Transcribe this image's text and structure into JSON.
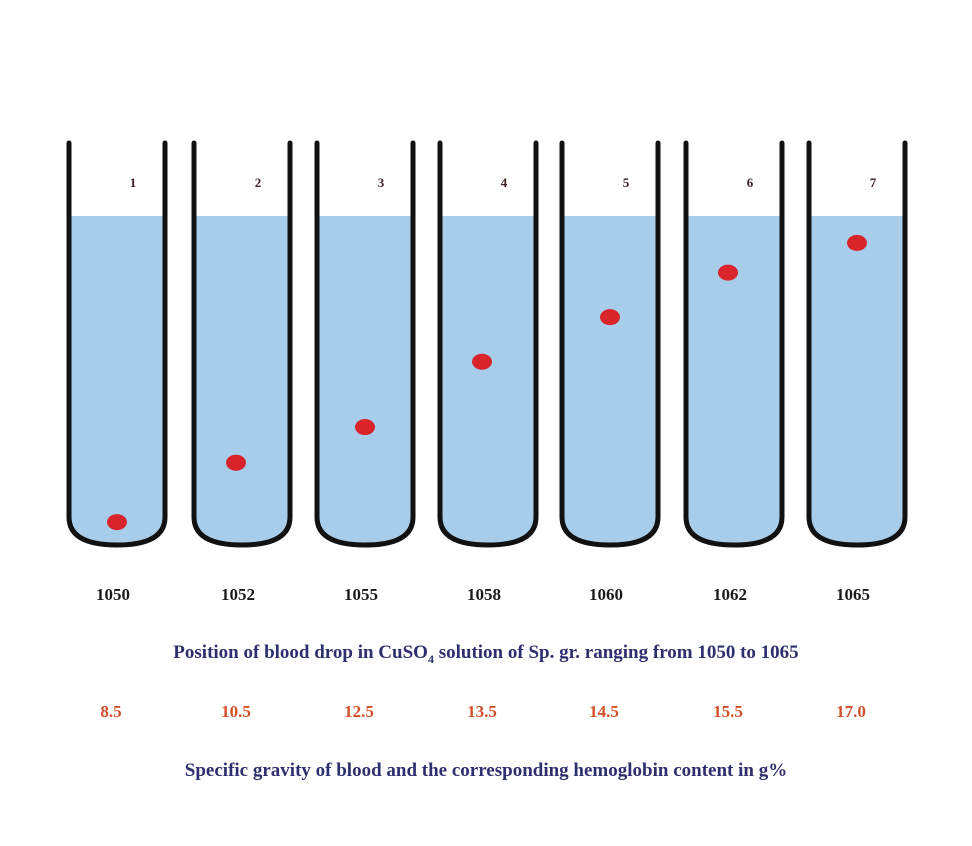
{
  "colors": {
    "liquid": "#a8cdea",
    "tube_outline": "#111111",
    "drop": "#d8242a",
    "hb_text": "#d4502a",
    "caption_text": "#2e2f6e"
  },
  "tubes": [
    {
      "number": "1",
      "specific_gravity": "1050",
      "hemoglobin": "8.5",
      "drop_depth_fraction": 0.97
    },
    {
      "number": "2",
      "specific_gravity": "1052",
      "hemoglobin": "10.5",
      "drop_depth_fraction": 0.77
    },
    {
      "number": "3",
      "specific_gravity": "1055",
      "hemoglobin": "12.5",
      "drop_depth_fraction": 0.65
    },
    {
      "number": "4",
      "specific_gravity": "1058",
      "hemoglobin": "13.5",
      "drop_depth_fraction": 0.43
    },
    {
      "number": "5",
      "specific_gravity": "1060",
      "hemoglobin": "14.5",
      "drop_depth_fraction": 0.28
    },
    {
      "number": "6",
      "specific_gravity": "1062",
      "hemoglobin": "15.5",
      "drop_depth_fraction": 0.13
    },
    {
      "number": "7",
      "specific_gravity": "1065",
      "hemoglobin": "17.0",
      "drop_depth_fraction": 0.03
    }
  ],
  "caption_1": {
    "before": "Position of blood drop in CuSO",
    "subscript": "4",
    "after": " solution of Sp. gr. ranging from 1050 to 1065"
  },
  "caption_2": "Specific gravity of blood and the corresponding hemoglobin content in g%"
}
